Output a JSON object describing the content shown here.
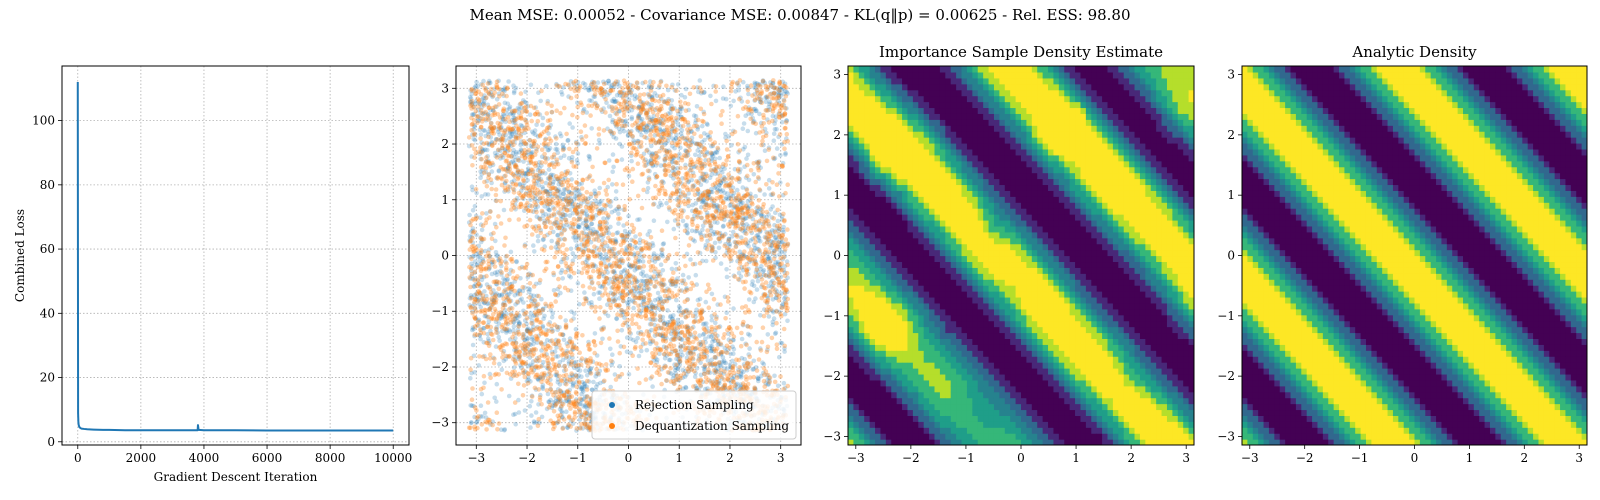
{
  "figure": {
    "suptitle": "Mean MSE: 0.00052 - Covariance MSE: 0.00847 - KL(q‖p) = 0.00625 - Rel. ESS: 98.80"
  },
  "colors": {
    "loss_line": "#1f77b4",
    "rejection": "#1f77b4",
    "dequantization": "#ff7f0e",
    "viridis": [
      "#440154",
      "#482878",
      "#3e4989",
      "#31688e",
      "#26828e",
      "#1f9e89",
      "#35b779",
      "#6ece58",
      "#b5de2b",
      "#fde725"
    ]
  },
  "chart_data": [
    {
      "type": "line",
      "title": "",
      "xlabel": "Gradient Descent Iteration",
      "ylabel": "Combined Loss",
      "xlim": [
        -500,
        10500
      ],
      "ylim": [
        -1,
        117
      ],
      "xticks": [
        0,
        2000,
        4000,
        6000,
        8000,
        10000
      ],
      "yticks": [
        0,
        20,
        40,
        60,
        80,
        100
      ],
      "grid": true,
      "series": [
        {
          "x": [
            0,
            5,
            10,
            20,
            30,
            50,
            80,
            120,
            200,
            300,
            500,
            800,
            1000,
            1500,
            2000,
            3000,
            3800,
            3810,
            3830,
            4000,
            5000,
            6000,
            7000,
            8000,
            9000,
            10000
          ],
          "y": [
            112,
            60,
            9,
            6,
            5.2,
            4.6,
            4.3,
            4.1,
            4.0,
            3.9,
            3.8,
            3.7,
            3.7,
            3.6,
            3.6,
            3.6,
            3.6,
            5.2,
            3.7,
            3.6,
            3.6,
            3.5,
            3.5,
            3.5,
            3.5,
            3.5
          ]
        }
      ]
    },
    {
      "type": "scatter",
      "title": "",
      "xlim": [
        -3.4,
        3.4
      ],
      "ylim": [
        -3.4,
        3.4
      ],
      "xticks": [
        -3,
        -2,
        -1,
        0,
        1,
        2,
        3
      ],
      "yticks": [
        -3,
        -2,
        -1,
        0,
        1,
        2,
        3
      ],
      "grid": true,
      "domain": [
        -3.14159,
        3.14159
      ],
      "density": "proportional to 1 + cos(2·(x + y) + 0.7)",
      "legend_position": "lower-right",
      "series": [
        {
          "name": "Rejection Sampling",
          "alpha": 0.25,
          "approx_count": 3200
        },
        {
          "name": "Dequantization Sampling",
          "alpha": 0.35,
          "approx_count": 3200
        }
      ]
    },
    {
      "type": "heatmap",
      "title": "Importance Sample Density Estimate",
      "xlim": [
        -3.14159,
        3.14159
      ],
      "ylim": [
        -3.14159,
        3.14159
      ],
      "xticks": [
        -3,
        -2,
        -1,
        0,
        1,
        2,
        3
      ],
      "yticks": [
        -3,
        -2,
        -1,
        0,
        1,
        2,
        3
      ],
      "levels": 8,
      "field": "1 + cos(2·(x + y) + 0.7)",
      "estimate": true
    },
    {
      "type": "heatmap",
      "title": "Analytic Density",
      "xlim": [
        -3.14159,
        3.14159
      ],
      "ylim": [
        -3.14159,
        3.14159
      ],
      "xticks": [
        -3,
        -2,
        -1,
        0,
        1,
        2,
        3
      ],
      "yticks": [
        -3,
        -2,
        -1,
        0,
        1,
        2,
        3
      ],
      "levels": 8,
      "field": "1 + cos(2·(x + y) + 0.7)",
      "estimate": false
    }
  ]
}
